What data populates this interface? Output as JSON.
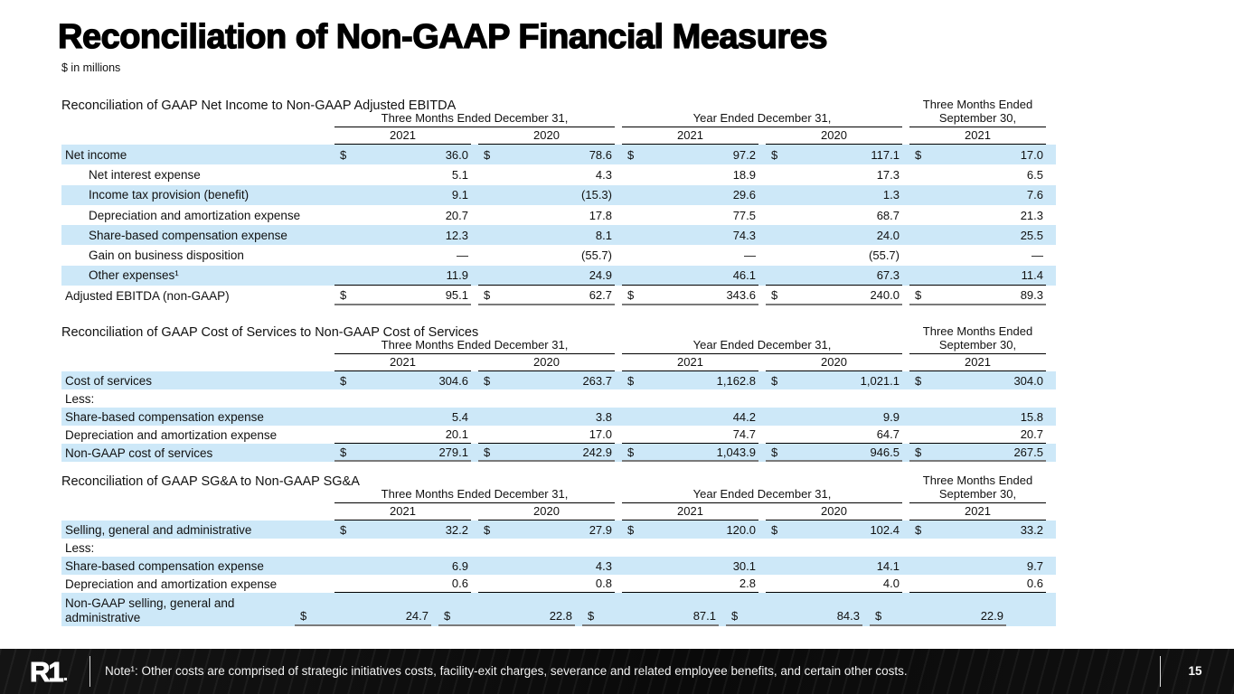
{
  "page": {
    "title": "Reconciliation of Non-GAAP Financial Measures",
    "units_note": "$ in millions",
    "logo_text": "R1",
    "footnote": "Note¹: Other costs are comprised of strategic initiatives costs, facility-exit charges, severance and related employee benefits, and certain other costs.",
    "page_number": "15"
  },
  "colors": {
    "row_stripe": "#cde8f8",
    "header_rule": "#000000",
    "total_rule": "#7a7a7a",
    "footer_background": "#0b0b0b"
  },
  "columns": {
    "group1": "Three Months Ended December 31,",
    "group2": "Year Ended December 31,",
    "group3_line1": "Three Months Ended",
    "group3_line2": "September 30,",
    "years": [
      "2021",
      "2020",
      "2021",
      "2020",
      "2021"
    ]
  },
  "tables": [
    {
      "id": "net-income-to-adjusted-ebitda",
      "title": "Reconciliation of GAAP Net Income to Non-GAAP Adjusted EBITDA",
      "rows": [
        {
          "label": "Net income",
          "indent": false,
          "dollar": true,
          "shade": true,
          "values": [
            "36.0",
            "78.6",
            "97.2",
            "117.1",
            "17.0"
          ]
        },
        {
          "label": "Net interest expense",
          "indent": true,
          "dollar": false,
          "shade": false,
          "values": [
            "5.1",
            "4.3",
            "18.9",
            "17.3",
            "6.5"
          ]
        },
        {
          "label": "Income tax provision (benefit)",
          "indent": true,
          "dollar": false,
          "shade": true,
          "values": [
            "9.1",
            "(15.3)",
            "29.6",
            "1.3",
            "7.6"
          ]
        },
        {
          "label": "Depreciation and amortization expense",
          "indent": true,
          "dollar": false,
          "shade": false,
          "values": [
            "20.7",
            "17.8",
            "77.5",
            "68.7",
            "21.3"
          ]
        },
        {
          "label": "Share-based compensation expense",
          "indent": true,
          "dollar": false,
          "shade": true,
          "values": [
            "12.3",
            "8.1",
            "74.3",
            "24.0",
            "25.5"
          ]
        },
        {
          "label": "Gain on business disposition",
          "indent": true,
          "dollar": false,
          "shade": false,
          "values": [
            "—",
            "(55.7)",
            "—",
            "(55.7)",
            "—"
          ]
        },
        {
          "label": "Other expenses¹",
          "indent": true,
          "dollar": false,
          "shade": true,
          "pretotal": true,
          "values": [
            "11.9",
            "24.9",
            "46.1",
            "67.3",
            "11.4"
          ]
        },
        {
          "label": "Adjusted EBITDA (non-GAAP)",
          "indent": false,
          "dollar": true,
          "shade": false,
          "total": true,
          "values": [
            "95.1",
            "62.7",
            "343.6",
            "240.0",
            "89.3"
          ]
        }
      ]
    },
    {
      "id": "cost-of-services",
      "title": "Reconciliation of GAAP Cost of Services to Non-GAAP Cost of Services",
      "rows": [
        {
          "label": "Cost of services",
          "indent": false,
          "dollar": true,
          "shade": true,
          "values": [
            "304.6",
            "263.7",
            "1,162.8",
            "1,021.1",
            "304.0"
          ]
        },
        {
          "label": "Less:",
          "indent": false,
          "dollar": false,
          "shade": false,
          "values": [
            "",
            "",
            "",
            "",
            ""
          ]
        },
        {
          "label": "Share-based compensation expense",
          "indent": false,
          "dollar": false,
          "shade": true,
          "values": [
            "5.4",
            "3.8",
            "44.2",
            "9.9",
            "15.8"
          ]
        },
        {
          "label": "Depreciation and amortization expense",
          "indent": false,
          "dollar": false,
          "shade": false,
          "pretotal": true,
          "values": [
            "20.1",
            "17.0",
            "74.7",
            "64.7",
            "20.7"
          ]
        },
        {
          "label": "Non-GAAP cost of services",
          "indent": false,
          "dollar": true,
          "shade": true,
          "total": true,
          "values": [
            "279.1",
            "242.9",
            "1,043.9",
            "946.5",
            "267.5"
          ]
        }
      ]
    },
    {
      "id": "sgna",
      "title": "Reconciliation of GAAP SG&A to Non-GAAP SG&A",
      "rows": [
        {
          "label": "Selling, general and administrative",
          "indent": false,
          "dollar": true,
          "shade": true,
          "values": [
            "32.2",
            "27.9",
            "120.0",
            "102.4",
            "33.2"
          ]
        },
        {
          "label": "Less:",
          "indent": false,
          "dollar": false,
          "shade": false,
          "values": [
            "",
            "",
            "",
            "",
            ""
          ]
        },
        {
          "label": "Share-based compensation expense",
          "indent": false,
          "dollar": false,
          "shade": true,
          "values": [
            "6.9",
            "4.3",
            "30.1",
            "14.1",
            "9.7"
          ]
        },
        {
          "label": "Depreciation and amortization expense",
          "indent": false,
          "dollar": false,
          "shade": false,
          "pretotal": true,
          "values": [
            "0.6",
            "0.8",
            "2.8",
            "4.0",
            "0.6"
          ]
        },
        {
          "label": "Non-GAAP selling, general and administrative",
          "indent": false,
          "dollar": true,
          "shade": true,
          "total": true,
          "tall": true,
          "values": [
            "24.7",
            "22.8",
            "87.1",
            "84.3",
            "22.9"
          ]
        }
      ]
    }
  ]
}
